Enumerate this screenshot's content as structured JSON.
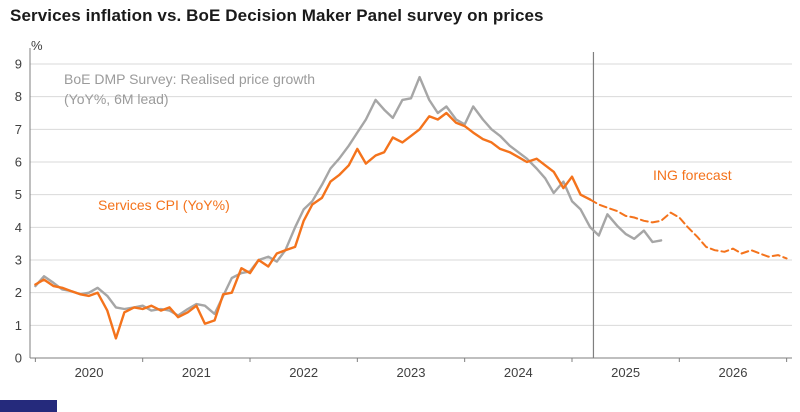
{
  "title": "Services inflation vs. BoE Decision Maker Panel survey on prices",
  "colors": {
    "orange": "#f4731c",
    "gray_line": "#a6a6a6",
    "grid": "#d9d9d9",
    "axis": "#7f7f7f",
    "marker": "#7f7f7f",
    "tick_text": "#404040",
    "title_text": "#1a1a1a",
    "annotation_gray": "#9b9b9b",
    "footer_navy": "#252a7c"
  },
  "chart_data": {
    "type": "line",
    "title": "Services inflation vs. BoE Decision Maker Panel survey on prices",
    "xlabel": "",
    "ylabel": "%",
    "ylim": [
      0,
      9
    ],
    "xlim": [
      2019.45,
      2026.55
    ],
    "y_ticks": [
      0,
      1,
      2,
      3,
      4,
      5,
      6,
      7,
      8,
      9
    ],
    "x_ticks": [
      2020,
      2021,
      2022,
      2023,
      2024,
      2025,
      2026
    ],
    "x_tick_marks": [
      2019.5,
      2020.5,
      2021.5,
      2022.5,
      2023.5,
      2024.5,
      2025.5,
      2026.5
    ],
    "grid": "horizontal",
    "legend_position": "annotations-on-plot",
    "forecast_start_x": 2024.7,
    "annotations": [
      {
        "id": "dmp",
        "text": "BoE DMP Survey: Realised price growth (YoY%, 6M lead)",
        "color_key": "annotation_gray"
      },
      {
        "id": "cpi",
        "text": "Services CPI (YoY%)",
        "color_key": "orange"
      },
      {
        "id": "forecast",
        "text": "ING forecast",
        "color_key": "orange"
      }
    ],
    "series": [
      {
        "name": "BoE DMP Survey: Realised price growth (YoY%, 6M lead)",
        "color": "#a6a6a6",
        "style": "solid",
        "width": 2.4,
        "x": [
          2019.5,
          2019.58,
          2019.67,
          2019.75,
          2019.83,
          2019.92,
          2020,
          2020.08,
          2020.17,
          2020.25,
          2020.33,
          2020.42,
          2020.5,
          2020.58,
          2020.67,
          2020.75,
          2020.83,
          2020.92,
          2021,
          2021.08,
          2021.17,
          2021.25,
          2021.33,
          2021.42,
          2021.5,
          2021.58,
          2021.67,
          2021.75,
          2021.83,
          2021.92,
          2022,
          2022.08,
          2022.17,
          2022.25,
          2022.33,
          2022.42,
          2022.5,
          2022.58,
          2022.67,
          2022.75,
          2022.83,
          2022.92,
          2023,
          2023.08,
          2023.17,
          2023.25,
          2023.33,
          2023.42,
          2023.5,
          2023.58,
          2023.67,
          2023.75,
          2023.83,
          2023.92,
          2024,
          2024.08,
          2024.17,
          2024.25,
          2024.33,
          2024.42,
          2024.5,
          2024.58,
          2024.67,
          2024.75,
          2024.83,
          2024.92,
          2025,
          2025.08,
          2025.17,
          2025.25,
          2025.33
        ],
        "values": [
          2.2,
          2.5,
          2.3,
          2.1,
          2.05,
          1.95,
          2.0,
          2.15,
          1.9,
          1.55,
          1.5,
          1.55,
          1.6,
          1.45,
          1.5,
          1.45,
          1.3,
          1.5,
          1.65,
          1.6,
          1.35,
          1.9,
          2.45,
          2.6,
          2.65,
          3.0,
          3.1,
          2.95,
          3.3,
          4.0,
          4.55,
          4.8,
          5.3,
          5.8,
          6.1,
          6.5,
          6.9,
          7.3,
          7.9,
          7.6,
          7.35,
          7.9,
          7.95,
          8.6,
          7.9,
          7.5,
          7.7,
          7.3,
          7.15,
          7.7,
          7.3,
          7.0,
          6.8,
          6.5,
          6.3,
          6.1,
          5.8,
          5.5,
          5.05,
          5.4,
          4.8,
          4.55,
          4.0,
          3.75,
          4.4,
          4.05,
          3.8,
          3.65,
          3.9,
          3.55,
          3.6
        ]
      },
      {
        "name": "Services CPI (YoY%)",
        "color": "#f4731c",
        "style": "solid",
        "width": 2.4,
        "x": [
          2019.5,
          2019.58,
          2019.67,
          2019.75,
          2019.83,
          2019.92,
          2020,
          2020.08,
          2020.17,
          2020.25,
          2020.33,
          2020.42,
          2020.5,
          2020.58,
          2020.67,
          2020.75,
          2020.83,
          2020.92,
          2021,
          2021.08,
          2021.17,
          2021.25,
          2021.33,
          2021.42,
          2021.5,
          2021.58,
          2021.67,
          2021.75,
          2021.83,
          2021.92,
          2022,
          2022.08,
          2022.17,
          2022.25,
          2022.33,
          2022.42,
          2022.5,
          2022.58,
          2022.67,
          2022.75,
          2022.83,
          2022.92,
          2023,
          2023.08,
          2023.17,
          2023.25,
          2023.33,
          2023.42,
          2023.5,
          2023.58,
          2023.67,
          2023.75,
          2023.83,
          2023.92,
          2024,
          2024.08,
          2024.17,
          2024.25,
          2024.33,
          2024.42,
          2024.5,
          2024.58,
          2024.67
        ],
        "values": [
          2.25,
          2.4,
          2.2,
          2.15,
          2.05,
          1.95,
          1.9,
          2.0,
          1.45,
          0.6,
          1.4,
          1.55,
          1.5,
          1.6,
          1.45,
          1.55,
          1.25,
          1.4,
          1.6,
          1.05,
          1.15,
          1.95,
          2.0,
          2.75,
          2.6,
          3.0,
          2.8,
          3.2,
          3.3,
          3.4,
          4.2,
          4.7,
          4.9,
          5.4,
          5.6,
          5.9,
          6.4,
          5.95,
          6.2,
          6.3,
          6.75,
          6.6,
          6.8,
          7.0,
          7.4,
          7.3,
          7.5,
          7.2,
          7.1,
          6.9,
          6.7,
          6.6,
          6.4,
          6.3,
          6.15,
          6.0,
          6.1,
          5.9,
          5.7,
          5.2,
          5.55,
          5.0,
          4.85
        ]
      },
      {
        "name": "ING forecast (Services CPI, YoY%)",
        "color": "#f4731c",
        "style": "dashed",
        "width": 2,
        "x": [
          2024.67,
          2024.75,
          2024.83,
          2024.92,
          2025,
          2025.08,
          2025.17,
          2025.25,
          2025.33,
          2025.42,
          2025.5,
          2025.58,
          2025.67,
          2025.75,
          2025.83,
          2025.92,
          2026,
          2026.08,
          2026.17,
          2026.25,
          2026.33,
          2026.42,
          2026.5
        ],
        "values": [
          4.85,
          4.7,
          4.6,
          4.5,
          4.35,
          4.3,
          4.2,
          4.15,
          4.2,
          4.45,
          4.3,
          4.0,
          3.7,
          3.4,
          3.3,
          3.25,
          3.35,
          3.2,
          3.3,
          3.2,
          3.1,
          3.15,
          3.05
        ]
      }
    ]
  }
}
